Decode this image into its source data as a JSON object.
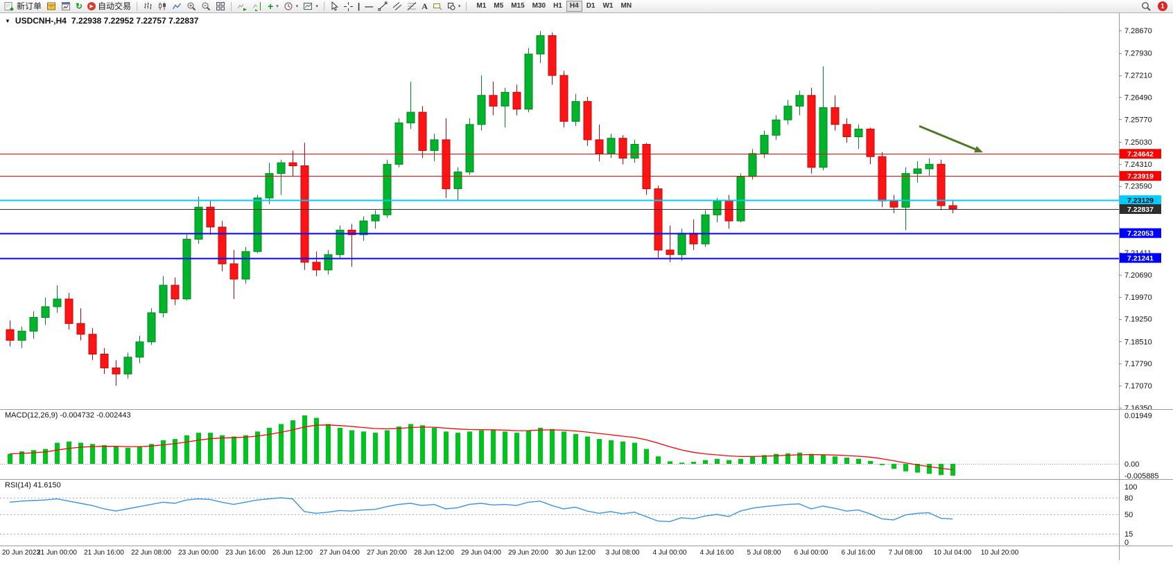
{
  "colors": {
    "up": "#00b42c",
    "up_stroke": "#00861f",
    "down": "#fe1414",
    "down_stroke": "#c00606",
    "macd_bar": "#00c41e",
    "macd_signal": "#ff0000",
    "rsi_line": "#3894e8",
    "arrow": "#4e7a27",
    "axis_text": "#111111"
  },
  "icons": {
    "triangle_marker": "▼",
    "caret": "▾",
    "refresh": "↻",
    "play": "▶",
    "add": "+",
    "vertical_line": "|",
    "horizontal_line": "—",
    "text_tool": "A"
  },
  "toolbar": {
    "new_order_label": "新订单",
    "auto_trading_label": "自动交易",
    "timeframes": [
      "M1",
      "M5",
      "M15",
      "M30",
      "H1",
      "H4",
      "D1",
      "W1",
      "MN"
    ],
    "active_timeframe": "H4",
    "notification_count": "1",
    "icon_names": [
      "new-order-icon",
      "archive-box-icon",
      "market-watch-icon",
      "refresh-icon",
      "auto-trading-icon",
      "bar-chart-icon",
      "candlestick-chart-icon",
      "line-chart-icon",
      "zoom-in-icon",
      "zoom-out-icon",
      "tile-windows-icon",
      "auto-scroll-icon",
      "chart-shift-icon",
      "add-indicator-icon",
      "periods-clock-icon",
      "templates-icon",
      "cursor-icon",
      "crosshair-icon",
      "vertical-line-icon",
      "horizontal-line-icon",
      "trendline-icon",
      "equidistant-channel-icon",
      "fibonacci-icon",
      "text-icon",
      "text-label-icon",
      "shapes-icon",
      "search-icon",
      "notification-badge"
    ]
  },
  "chart": {
    "symbol_period": "USDCNH-,H4",
    "ohlc": "7.22938 7.22952 7.22757 7.22837"
  },
  "chart_data": {
    "type": "candlestick",
    "symbol": "USDCNH",
    "timeframe": "H4",
    "ohlc_display": {
      "open": "7.22938",
      "high": "7.22952",
      "low": "7.22757",
      "close": "7.22837"
    },
    "y_range": [
      7.1631,
      7.2924
    ],
    "price_axis_labels": [
      "7.28670",
      "7.27930",
      "7.27210",
      "7.26490",
      "7.25770",
      "7.25030",
      "7.24310",
      "7.23590",
      "7.21411",
      "7.20690",
      "7.19970",
      "7.19250",
      "7.18510",
      "7.17790",
      "7.17070",
      "7.16350"
    ],
    "time_labels": [
      "20 Jun 2023",
      "21 Jun 00:00",
      "21 Jun 16:00",
      "22 Jun 08:00",
      "23 Jun 00:00",
      "23 Jun 16:00",
      "26 Jun 12:00",
      "27 Jun 04:00",
      "27 Jun 20:00",
      "28 Jun 12:00",
      "29 Jun 04:00",
      "29 Jun 20:00",
      "30 Jun 12:00",
      "3 Jul 08:00",
      "4 Jul 00:00",
      "4 Jul 16:00",
      "5 Jul 08:00",
      "6 Jul 00:00",
      "6 Jul 16:00",
      "7 Jul 08:00",
      "10 Jul 04:00",
      "10 Jul 20:00"
    ],
    "candles": [
      [
        7.189,
        7.192,
        7.1835,
        7.1855
      ],
      [
        7.1855,
        7.19,
        7.183,
        7.1885
      ],
      [
        7.1885,
        7.195,
        7.186,
        7.193
      ],
      [
        7.193,
        7.1995,
        7.1905,
        7.1965
      ],
      [
        7.1965,
        7.2035,
        7.1945,
        7.199
      ],
      [
        7.199,
        7.201,
        7.189,
        7.191
      ],
      [
        7.191,
        7.196,
        7.1855,
        7.1875
      ],
      [
        7.1875,
        7.1895,
        7.179,
        7.181
      ],
      [
        7.181,
        7.183,
        7.1745,
        7.1765
      ],
      [
        7.1765,
        7.179,
        7.1707,
        7.1745
      ],
      [
        7.1745,
        7.1815,
        7.173,
        7.18
      ],
      [
        7.18,
        7.187,
        7.178,
        7.185
      ],
      [
        7.185,
        7.196,
        7.184,
        7.1945
      ],
      [
        7.1945,
        7.2065,
        7.193,
        7.2035
      ],
      [
        7.2035,
        7.206,
        7.197,
        7.199
      ],
      [
        7.199,
        7.22,
        7.1985,
        7.2185
      ],
      [
        7.2185,
        7.2325,
        7.217,
        7.229
      ],
      [
        7.229,
        7.231,
        7.22,
        7.2225
      ],
      [
        7.2225,
        7.2245,
        7.208,
        7.2105
      ],
      [
        7.2105,
        7.215,
        7.199,
        7.2055
      ],
      [
        7.2055,
        7.216,
        7.204,
        7.2145
      ],
      [
        7.2145,
        7.233,
        7.214,
        7.232
      ],
      [
        7.232,
        7.2435,
        7.23,
        7.24
      ],
      [
        7.24,
        7.2445,
        7.233,
        7.2435
      ],
      [
        7.2435,
        7.2475,
        7.239,
        7.2425
      ],
      [
        7.2425,
        7.25,
        7.2085,
        7.211
      ],
      [
        7.211,
        7.2145,
        7.2065,
        7.2085
      ],
      [
        7.2085,
        7.215,
        7.207,
        7.2135
      ],
      [
        7.2135,
        7.223,
        7.212,
        7.2215
      ],
      [
        7.2215,
        7.2235,
        7.2095,
        7.22
      ],
      [
        7.22,
        7.226,
        7.218,
        7.2245
      ],
      [
        7.2245,
        7.228,
        7.222,
        7.2265
      ],
      [
        7.2265,
        7.2445,
        7.2255,
        7.243
      ],
      [
        7.243,
        7.258,
        7.242,
        7.2565
      ],
      [
        7.2565,
        7.27,
        7.2545,
        7.26
      ],
      [
        7.26,
        7.262,
        7.245,
        7.2475
      ],
      [
        7.2475,
        7.253,
        7.244,
        7.251
      ],
      [
        7.251,
        7.258,
        7.232,
        7.235
      ],
      [
        7.235,
        7.242,
        7.231,
        7.2405
      ],
      [
        7.2405,
        7.258,
        7.2395,
        7.256
      ],
      [
        7.256,
        7.272,
        7.254,
        7.2655
      ],
      [
        7.2655,
        7.27,
        7.259,
        7.262
      ],
      [
        7.262,
        7.268,
        7.255,
        7.2665
      ],
      [
        7.2665,
        7.269,
        7.259,
        7.261
      ],
      [
        7.261,
        7.281,
        7.26,
        7.279
      ],
      [
        7.279,
        7.2865,
        7.276,
        7.285
      ],
      [
        7.285,
        7.286,
        7.269,
        7.272
      ],
      [
        7.272,
        7.2735,
        7.255,
        7.257
      ],
      [
        7.257,
        7.266,
        7.2555,
        7.2635
      ],
      [
        7.2635,
        7.265,
        7.249,
        7.251
      ],
      [
        7.251,
        7.256,
        7.244,
        7.2465
      ],
      [
        7.2465,
        7.253,
        7.245,
        7.2515
      ],
      [
        7.2515,
        7.2525,
        7.243,
        7.245
      ],
      [
        7.245,
        7.251,
        7.2435,
        7.2495
      ],
      [
        7.2495,
        7.25,
        7.233,
        7.235
      ],
      [
        7.235,
        7.236,
        7.2125,
        7.215
      ],
      [
        7.215,
        7.223,
        7.211,
        7.2135
      ],
      [
        7.2135,
        7.222,
        7.2115,
        7.2205
      ],
      [
        7.2205,
        7.225,
        7.215,
        7.217
      ],
      [
        7.217,
        7.228,
        7.216,
        7.2265
      ],
      [
        7.2265,
        7.232,
        7.224,
        7.231
      ],
      [
        7.231,
        7.233,
        7.222,
        7.2245
      ],
      [
        7.2245,
        7.24,
        7.224,
        7.239
      ],
      [
        7.239,
        7.248,
        7.238,
        7.2465
      ],
      [
        7.2465,
        7.254,
        7.245,
        7.2525
      ],
      [
        7.2525,
        7.259,
        7.251,
        7.2575
      ],
      [
        7.2575,
        7.264,
        7.256,
        7.262
      ],
      [
        7.262,
        7.267,
        7.259,
        7.2655
      ],
      [
        7.2655,
        7.268,
        7.24,
        7.242
      ],
      [
        7.242,
        7.275,
        7.241,
        7.2615
      ],
      [
        7.2615,
        7.2655,
        7.254,
        7.256
      ],
      [
        7.256,
        7.258,
        7.25,
        7.252
      ],
      [
        7.252,
        7.256,
        7.248,
        7.2545
      ],
      [
        7.2545,
        7.255,
        7.243,
        7.2455
      ],
      [
        7.2455,
        7.247,
        7.229,
        7.231
      ],
      [
        7.231,
        7.233,
        7.227,
        7.229
      ],
      [
        7.229,
        7.242,
        7.2215,
        7.24
      ],
      [
        7.24,
        7.244,
        7.237,
        7.2415
      ],
      [
        7.2415,
        7.245,
        7.239,
        7.243
      ],
      [
        7.243,
        7.2445,
        7.228,
        7.2295
      ],
      [
        7.2295,
        7.231,
        7.227,
        7.2284
      ]
    ],
    "hlines": [
      {
        "price": 7.24642,
        "label": "7.24642",
        "color": "#ff0000",
        "text_color": "#ffffff",
        "width": 1
      },
      {
        "price": 7.23919,
        "label": "7.23919",
        "color": "#ff0000",
        "text_color": "#ffffff",
        "width": 1
      },
      {
        "price": 7.23129,
        "label": "7.23129",
        "color": "#00ccff",
        "text_color": "#000000",
        "width": 2
      },
      {
        "price": 7.22837,
        "label": "7.22837",
        "color": "#2e2e2e",
        "text_color": "#ffffff",
        "width": 1
      },
      {
        "price": 7.22053,
        "label": "7.22053",
        "color": "#0000ff",
        "text_color": "#ffffff",
        "width": 2
      },
      {
        "price": 7.21241,
        "label": "7.21241",
        "color": "#0000ff",
        "text_color": "#ffffff",
        "width": 2
      }
    ],
    "annotations": [
      {
        "type": "arrow",
        "direction": "down-right",
        "price_to": 7.24642,
        "color": "#4e7a27"
      }
    ],
    "indicators": [
      {
        "name": "MACD",
        "params": "12,26,9",
        "label": "MACD(12,26,9) -0.004732 -0.002443",
        "value": -0.004732,
        "signal_value": -0.002443,
        "scale_labels": [
          "0.01949",
          "0.00",
          "-0.005885"
        ],
        "scale_max": 0.01949,
        "scale_min": -0.005885,
        "histogram": [
          0.004,
          0.005,
          0.0055,
          0.006,
          0.0085,
          0.009,
          0.0085,
          0.008,
          0.0075,
          0.007,
          0.0065,
          0.007,
          0.008,
          0.0095,
          0.01,
          0.0115,
          0.0125,
          0.0125,
          0.0115,
          0.011,
          0.0115,
          0.013,
          0.0145,
          0.016,
          0.0175,
          0.0195,
          0.0185,
          0.016,
          0.0145,
          0.0135,
          0.013,
          0.0125,
          0.0135,
          0.015,
          0.016,
          0.0155,
          0.0145,
          0.013,
          0.0125,
          0.013,
          0.0135,
          0.0135,
          0.013,
          0.0125,
          0.0135,
          0.0145,
          0.014,
          0.013,
          0.012,
          0.011,
          0.01,
          0.0095,
          0.009,
          0.0085,
          0.006,
          0.003,
          0.001,
          0.0005,
          0.0008,
          0.0015,
          0.002,
          0.0015,
          0.002,
          0.003,
          0.0035,
          0.004,
          0.0042,
          0.0045,
          0.004,
          0.0035,
          0.003,
          0.0025,
          0.002,
          0.0012,
          -0.0005,
          -0.002,
          -0.003,
          -0.0035,
          -0.004,
          -0.0045,
          -0.004732
        ]
      },
      {
        "name": "RSI",
        "params": "14",
        "label": "RSI(14) 41.6150",
        "value": 41.615,
        "levels": [
          "100",
          "80",
          "50",
          "15",
          "0"
        ],
        "values": [
          72,
          74,
          75,
          76,
          78,
          74,
          70,
          66,
          60,
          56,
          60,
          64,
          68,
          72,
          70,
          76,
          78,
          77,
          72,
          68,
          72,
          76,
          78,
          80,
          78,
          55,
          52,
          54,
          57,
          56,
          58,
          59,
          64,
          68,
          70,
          66,
          68,
          60,
          62,
          68,
          70,
          67,
          68,
          66,
          72,
          74,
          66,
          60,
          63,
          56,
          52,
          55,
          51,
          54,
          46,
          38,
          37,
          44,
          42,
          47,
          50,
          46,
          56,
          61,
          64,
          66,
          68,
          69,
          60,
          65,
          61,
          56,
          58,
          51,
          42,
          40,
          49,
          52,
          53,
          43,
          41.615
        ]
      }
    ]
  }
}
